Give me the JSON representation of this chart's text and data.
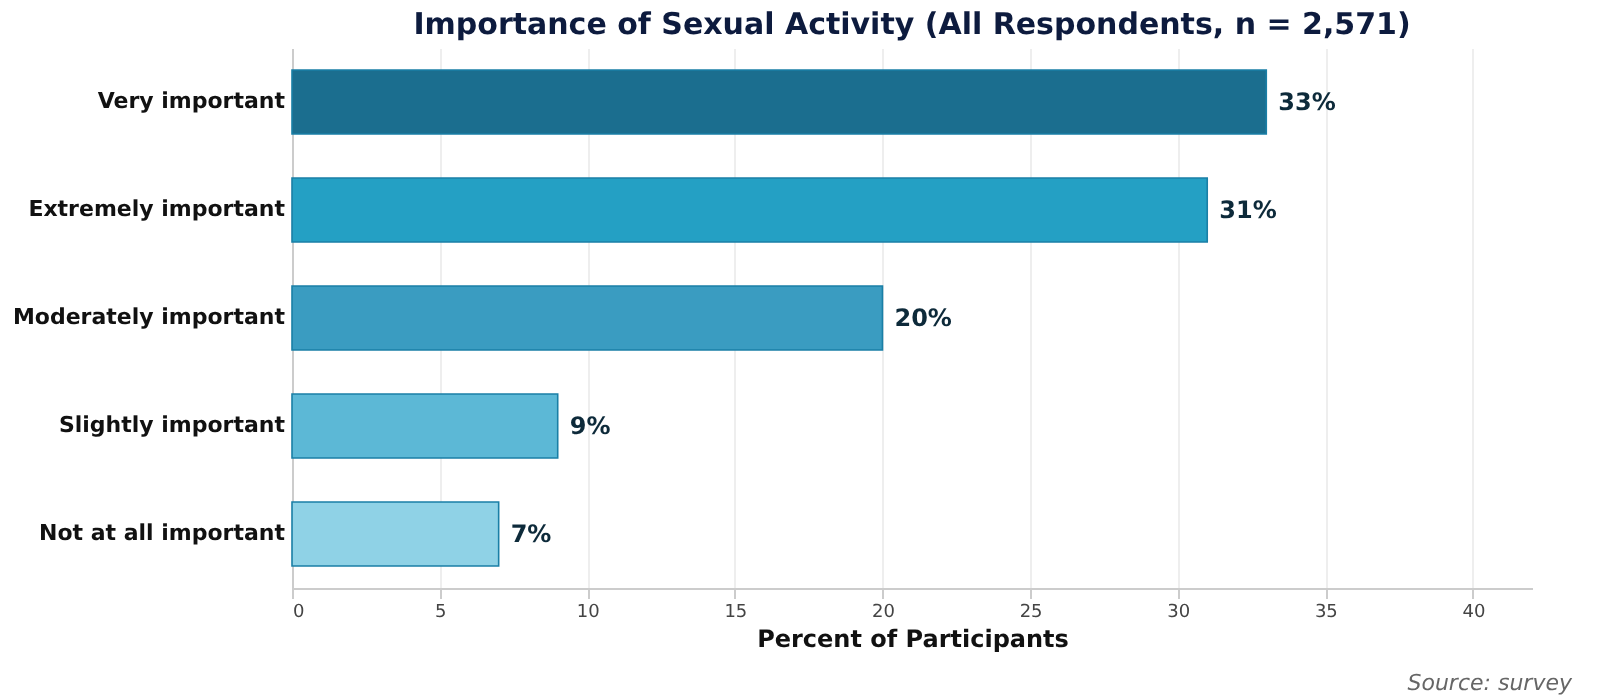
{
  "chart_data": {
    "type": "bar",
    "orientation": "horizontal",
    "title": "Importance of Sexual Activity (All Respondents, n = 2,571)",
    "xlabel": "Percent of Participants",
    "categories": [
      "Very important",
      "Extremely important",
      "Moderately important",
      "Slightly important",
      "Not at all important"
    ],
    "values": [
      33,
      31,
      20,
      9,
      7
    ],
    "colors": [
      "#1b6e8f",
      "#24a0c4",
      "#3a9cc1",
      "#5cb8d6",
      "#8fd2e6"
    ],
    "value_labels": [
      "33%",
      "31%",
      "20%",
      "9%",
      "7%"
    ],
    "xlim": [
      0,
      42
    ],
    "xticks": [
      0,
      5,
      10,
      15,
      20,
      25,
      30,
      35,
      40
    ],
    "grid": "x",
    "annotations": [
      "Source: survey"
    ]
  }
}
